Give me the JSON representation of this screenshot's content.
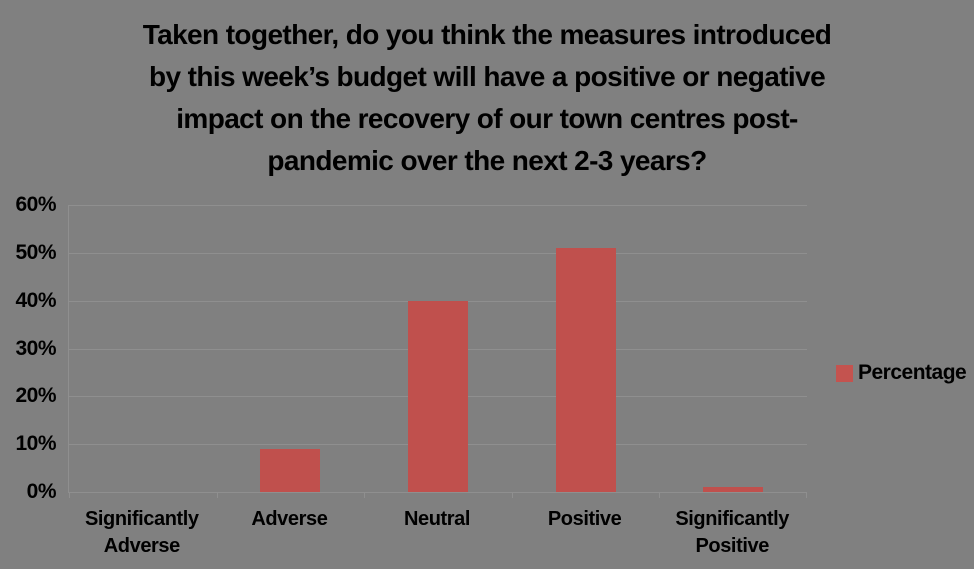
{
  "title": {
    "lines": [
      "Taken together, do you think the measures introduced",
      "by this week’s budget will have a positive or negative",
      "impact on the recovery of our town centres post-",
      "pandemic over the next 2-3 years?"
    ]
  },
  "chart_data": {
    "type": "bar",
    "title": "Taken together, do you think the measures introduced by this week’s budget will have a positive or negative impact on the recovery of our town centres post-pandemic over the next 2-3 years?",
    "categories": [
      "Significantly Adverse",
      "Adverse",
      "Neutral",
      "Positive",
      "Significantly Positive"
    ],
    "series": [
      {
        "name": "Percentage",
        "values": [
          0,
          9,
          40,
          51,
          1
        ]
      }
    ],
    "xlabel": "",
    "ylabel": "",
    "ylim": [
      0,
      60
    ],
    "yticks": [
      "0%",
      "10%",
      "20%",
      "30%",
      "40%",
      "50%",
      "60%"
    ],
    "grid": true,
    "legend_position": "right"
  },
  "legend": {
    "label": "Percentage"
  },
  "colors": {
    "background": "#808080",
    "gridline": "#8F8F8F",
    "bar": "#C0504D",
    "legend_marker": "#C4534F",
    "text": "#000000"
  }
}
